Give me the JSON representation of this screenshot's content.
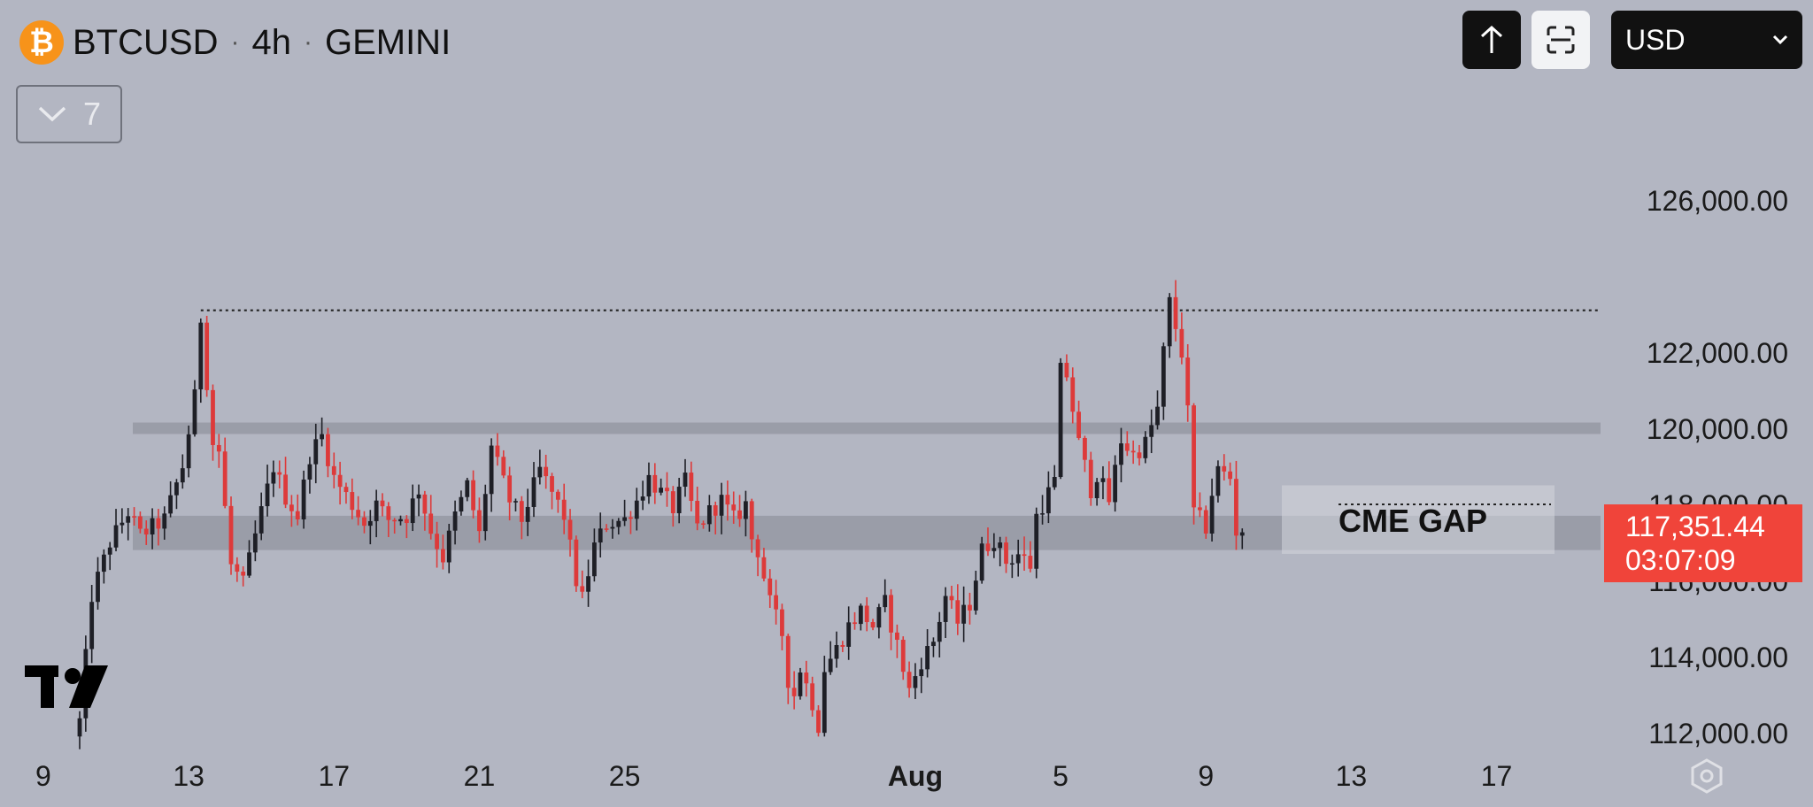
{
  "header": {
    "symbol": "BTCUSD",
    "interval": "4h",
    "exchange": "GEMINI",
    "collapsed_count": "7"
  },
  "toolbar": {
    "currency_selected": "USD"
  },
  "price_label": {
    "price": "117,351.44",
    "countdown": "03:07:09"
  },
  "colors": {
    "background": "#b3b6c2",
    "up_candle": "#1e1f26",
    "down_candle": "#dd3a3a",
    "zone": "#9a9da8",
    "price_tag": "#f0443a"
  },
  "chart_data": {
    "type": "candlestick",
    "ylim": [
      111500,
      127600
    ],
    "y_ticks": [
      {
        "value": 126000,
        "label": "126,000.00"
      },
      {
        "value": 122000,
        "label": "122,000.00"
      },
      {
        "value": 120000,
        "label": "120,000.00"
      },
      {
        "value": 118000,
        "label": "118,000.00"
      },
      {
        "value": 116000,
        "label": "116,000.00"
      },
      {
        "value": 114000,
        "label": "114,000.00"
      },
      {
        "value": 112000,
        "label": "112,000.00"
      }
    ],
    "x_ticks": [
      {
        "candle": -6,
        "label": "9"
      },
      {
        "candle": 18,
        "label": "13"
      },
      {
        "candle": 42,
        "label": "17"
      },
      {
        "candle": 66,
        "label": "21"
      },
      {
        "candle": 90,
        "label": "25"
      },
      {
        "candle": 138,
        "label": "Aug"
      },
      {
        "candle": 162,
        "label": "5"
      },
      {
        "candle": 186,
        "label": "9"
      },
      {
        "candle": 210,
        "label": "13"
      },
      {
        "candle": 234,
        "label": "17"
      }
    ],
    "x_tick_bold": [
      "Aug"
    ],
    "anchors": [
      [
        0,
        112300
      ],
      [
        2,
        115600
      ],
      [
        5,
        117000
      ],
      [
        8,
        117800
      ],
      [
        10,
        117200
      ],
      [
        14,
        117600
      ],
      [
        17,
        119000
      ],
      [
        19,
        120800
      ],
      [
        20,
        122900
      ],
      [
        22,
        119600
      ],
      [
        23,
        119400
      ],
      [
        25,
        116400
      ],
      [
        27,
        115900
      ],
      [
        30,
        117800
      ],
      [
        32,
        119000
      ],
      [
        34,
        118200
      ],
      [
        36,
        117700
      ],
      [
        38,
        119300
      ],
      [
        40,
        119800
      ],
      [
        42,
        118700
      ],
      [
        45,
        118000
      ],
      [
        47,
        117500
      ],
      [
        49,
        118000
      ],
      [
        51,
        117600
      ],
      [
        54,
        117700
      ],
      [
        56,
        118400
      ],
      [
        58,
        117300
      ],
      [
        60,
        116600
      ],
      [
        62,
        117700
      ],
      [
        64,
        118500
      ],
      [
        66,
        117200
      ],
      [
        68,
        119500
      ],
      [
        71,
        118100
      ],
      [
        73,
        117600
      ],
      [
        76,
        118900
      ],
      [
        78,
        118300
      ],
      [
        80,
        117700
      ],
      [
        82,
        116000
      ],
      [
        83,
        115500
      ],
      [
        85,
        116900
      ],
      [
        87,
        117500
      ],
      [
        90,
        117600
      ],
      [
        92,
        118100
      ],
      [
        94,
        118700
      ],
      [
        96,
        118300
      ],
      [
        98,
        117900
      ],
      [
        100,
        118600
      ],
      [
        102,
        117400
      ],
      [
        104,
        117800
      ],
      [
        106,
        118100
      ],
      [
        108,
        117600
      ],
      [
        110,
        118000
      ],
      [
        111,
        117100
      ],
      [
        112,
        116800
      ],
      [
        114,
        115400
      ],
      [
        116,
        114600
      ],
      [
        117,
        113400
      ],
      [
        118,
        113000
      ],
      [
        119,
        113700
      ],
      [
        121,
        112800
      ],
      [
        122,
        112200
      ],
      [
        123,
        113700
      ],
      [
        125,
        114200
      ],
      [
        127,
        114800
      ],
      [
        129,
        115200
      ],
      [
        131,
        114800
      ],
      [
        133,
        115400
      ],
      [
        135,
        114300
      ],
      [
        137,
        113100
      ],
      [
        139,
        113900
      ],
      [
        141,
        114400
      ],
      [
        143,
        115600
      ],
      [
        145,
        114900
      ],
      [
        147,
        115400
      ],
      [
        149,
        116800
      ],
      [
        151,
        117100
      ],
      [
        153,
        116500
      ],
      [
        155,
        116700
      ],
      [
        157,
        116400
      ],
      [
        158,
        117700
      ],
      [
        160,
        118300
      ],
      [
        161,
        118600
      ],
      [
        162,
        121500
      ],
      [
        163,
        121400
      ],
      [
        165,
        119600
      ],
      [
        167,
        118400
      ],
      [
        168,
        118800
      ],
      [
        170,
        118100
      ],
      [
        172,
        119700
      ],
      [
        174,
        119300
      ],
      [
        176,
        119600
      ],
      [
        178,
        120500
      ],
      [
        179,
        122000
      ],
      [
        180,
        123300
      ],
      [
        182,
        122000
      ],
      [
        183,
        120400
      ],
      [
        184,
        117800
      ],
      [
        186,
        117400
      ],
      [
        187,
        118300
      ],
      [
        188,
        118900
      ],
      [
        190,
        118700
      ],
      [
        191,
        117300
      ],
      [
        192,
        117351
      ]
    ],
    "zones": [
      {
        "from": 119850,
        "to": 120150
      },
      {
        "from": 116800,
        "to": 117700
      }
    ],
    "gap_box": {
      "from": 116700,
      "to": 118500,
      "label": "CME GAP"
    },
    "resistance_line": 123100,
    "gap_top_line": 118000,
    "last_price": 117351.44
  }
}
